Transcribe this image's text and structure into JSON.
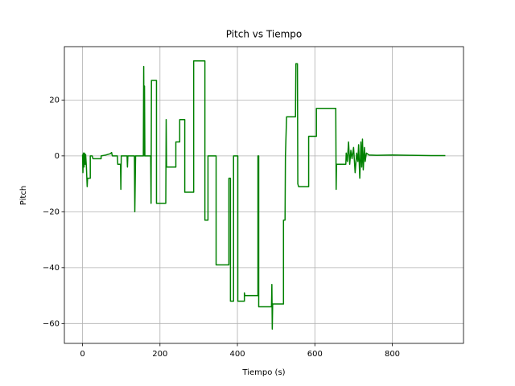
{
  "chart_data": {
    "type": "line",
    "title": "Pitch vs Tiempo",
    "x_label": "Tiempo (s)",
    "y_label": "Pitch",
    "x": [
      0,
      1,
      2,
      4,
      5,
      7,
      8,
      10,
      12,
      13,
      20,
      20,
      25,
      27,
      48,
      48,
      60,
      72,
      75,
      77,
      90,
      91,
      98,
      99,
      100,
      115,
      116,
      117,
      134,
      135,
      137,
      157,
      158,
      159,
      160,
      161,
      176,
      177,
      178,
      191,
      191,
      215,
      216,
      217,
      241,
      241,
      251,
      251,
      264,
      264,
      287,
      287,
      316,
      316,
      324,
      324,
      345,
      345,
      378,
      378,
      382,
      382,
      390,
      390,
      401,
      401,
      418,
      418,
      419,
      453,
      453,
      455,
      455,
      488,
      489,
      490,
      491,
      519,
      519,
      523,
      524,
      527,
      550,
      551,
      555,
      556,
      558,
      584,
      584,
      604,
      604,
      654,
      655,
      656,
      680,
      681,
      684,
      687,
      690,
      693,
      696,
      700,
      704,
      708,
      711,
      713,
      716,
      719,
      721,
      723,
      725,
      728,
      730,
      733,
      740,
      760,
      800,
      850,
      900,
      937
    ],
    "values": [
      0.5,
      -6,
      1,
      -4,
      1,
      -3,
      0.5,
      -4,
      -11,
      -8,
      -8,
      0,
      0,
      -1,
      -1,
      0,
      0.3,
      0.8,
      1.2,
      0,
      0,
      -3,
      -3,
      -12,
      0,
      0,
      -4,
      0,
      0,
      -20,
      0,
      0,
      32,
      0,
      25,
      0,
      0,
      -17,
      27,
      27,
      -17,
      -17,
      13,
      -4,
      -4,
      5,
      5,
      13,
      13,
      -13,
      -13,
      34,
      34,
      -23,
      -23,
      0,
      0,
      -39,
      -39,
      -8,
      -8,
      -52,
      -52,
      0,
      0,
      -52,
      -52,
      -49,
      -50,
      -50,
      0,
      0,
      -54,
      -54,
      -46,
      -62,
      -53,
      -53,
      -23,
      -23,
      0,
      14,
      14,
      33,
      33,
      -10,
      -11,
      -11,
      7,
      7,
      17,
      17,
      -12,
      -3,
      -3,
      1,
      -2,
      5,
      -3,
      2,
      -1,
      3,
      -6,
      1,
      -2,
      4,
      -8,
      5,
      -4,
      6,
      -5,
      3,
      -2,
      1,
      0.3,
      0.2,
      0.3,
      0.2,
      0.1,
      0.1
    ],
    "color": "#008000",
    "xlim": [
      -46.9,
      983.9
    ],
    "ylim": [
      -67.1,
      39.1
    ],
    "xticks": [
      0,
      200,
      400,
      600,
      800
    ],
    "yticks": [
      {
        "value": -60,
        "label": "−60"
      },
      {
        "value": -40,
        "label": "−40"
      },
      {
        "value": -20,
        "label": "−20"
      },
      0,
      20
    ],
    "grid": true
  }
}
